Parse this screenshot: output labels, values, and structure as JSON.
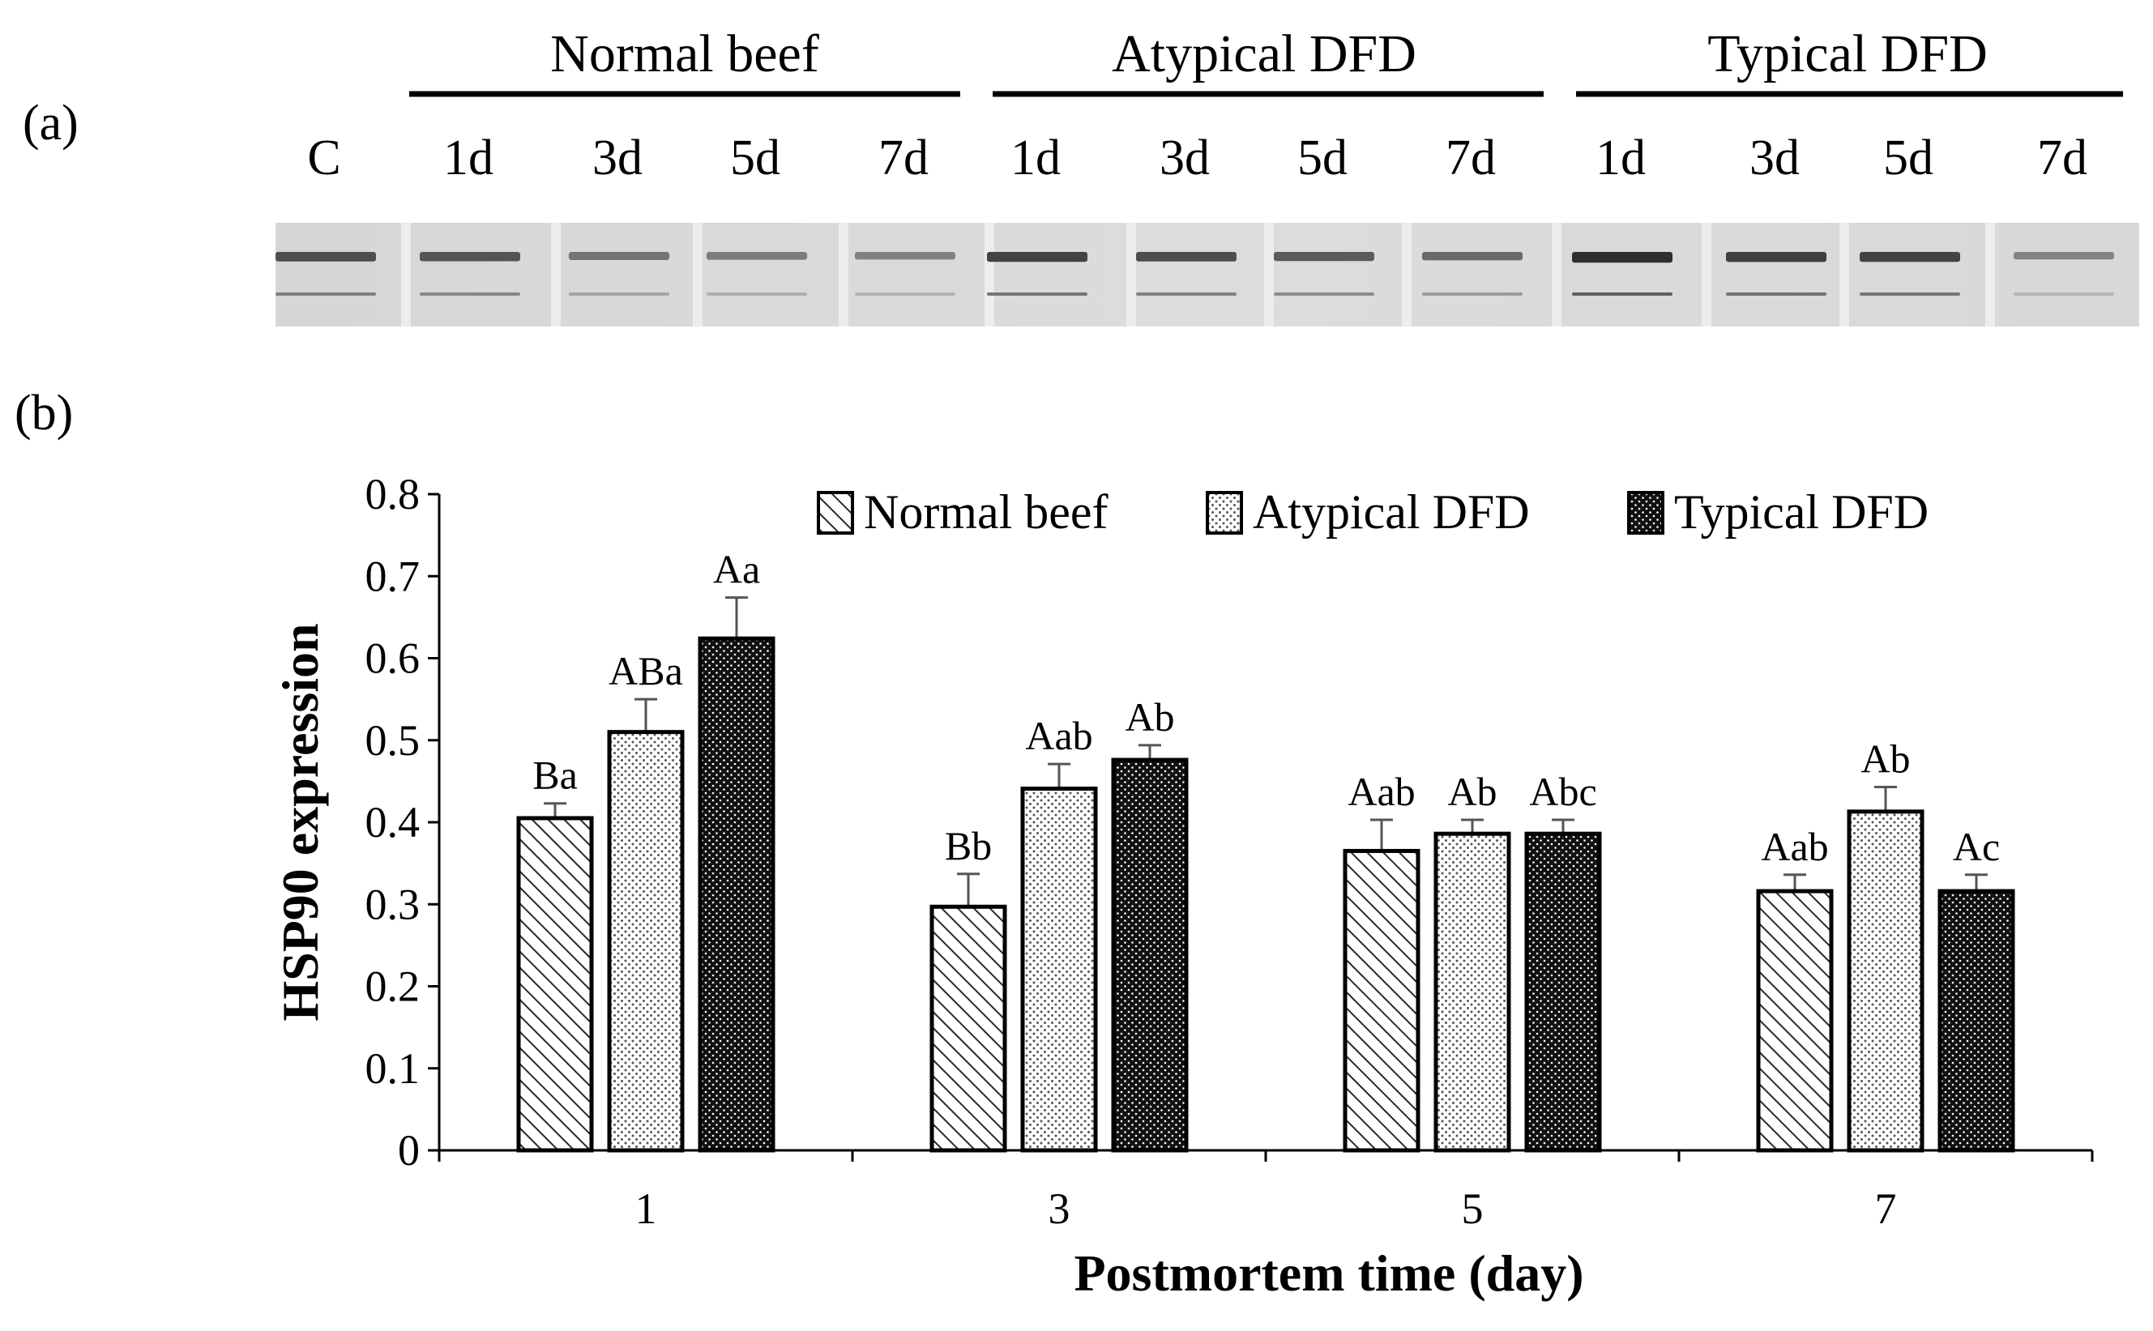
{
  "panels": {
    "a_label": "(a)",
    "b_label": "(b)"
  },
  "blot": {
    "groups": [
      "Normal beef",
      "Atypical DFD",
      "Typical DFD"
    ],
    "lanes": [
      "C",
      "1d",
      "3d",
      "5d",
      "7d",
      "1d",
      "3d",
      "5d",
      "7d",
      "1d",
      "3d",
      "5d",
      "7d"
    ],
    "band_intensity": [
      0.72,
      0.68,
      0.5,
      0.45,
      0.42,
      0.78,
      0.72,
      0.65,
      0.55,
      0.9,
      0.8,
      0.78,
      0.4
    ]
  },
  "chart_data": {
    "type": "bar",
    "title": "",
    "xlabel": "Postmortem time (day)",
    "ylabel": "HSP90 expression",
    "ylim": [
      0,
      0.8
    ],
    "yticks": [
      "0",
      "0.1",
      "0.2",
      "0.3",
      "0.4",
      "0.5",
      "0.6",
      "0.7",
      "0.8"
    ],
    "categories": [
      "1",
      "3",
      "5",
      "7"
    ],
    "legend_position": "top-right",
    "grid": false,
    "series": [
      {
        "name": "Normal beef",
        "pattern": "diagonal-hatch",
        "values": [
          0.405,
          0.297,
          0.365,
          0.316
        ],
        "errors": [
          0.018,
          0.04,
          0.038,
          0.02
        ],
        "labels": [
          "Ba",
          "Bb",
          "Aab",
          "Aab"
        ]
      },
      {
        "name": "Atypical DFD",
        "pattern": "light-dots",
        "values": [
          0.51,
          0.441,
          0.386,
          0.413
        ],
        "errors": [
          0.04,
          0.03,
          0.017,
          0.03
        ],
        "labels": [
          "ABa",
          "Aab",
          "Ab",
          "Ab"
        ]
      },
      {
        "name": "Typical DFD",
        "pattern": "dense-dots",
        "values": [
          0.624,
          0.476,
          0.386,
          0.316
        ],
        "errors": [
          0.05,
          0.018,
          0.017,
          0.02
        ],
        "labels": [
          "Aa",
          "Ab",
          "Abc",
          "Ac"
        ]
      }
    ]
  }
}
